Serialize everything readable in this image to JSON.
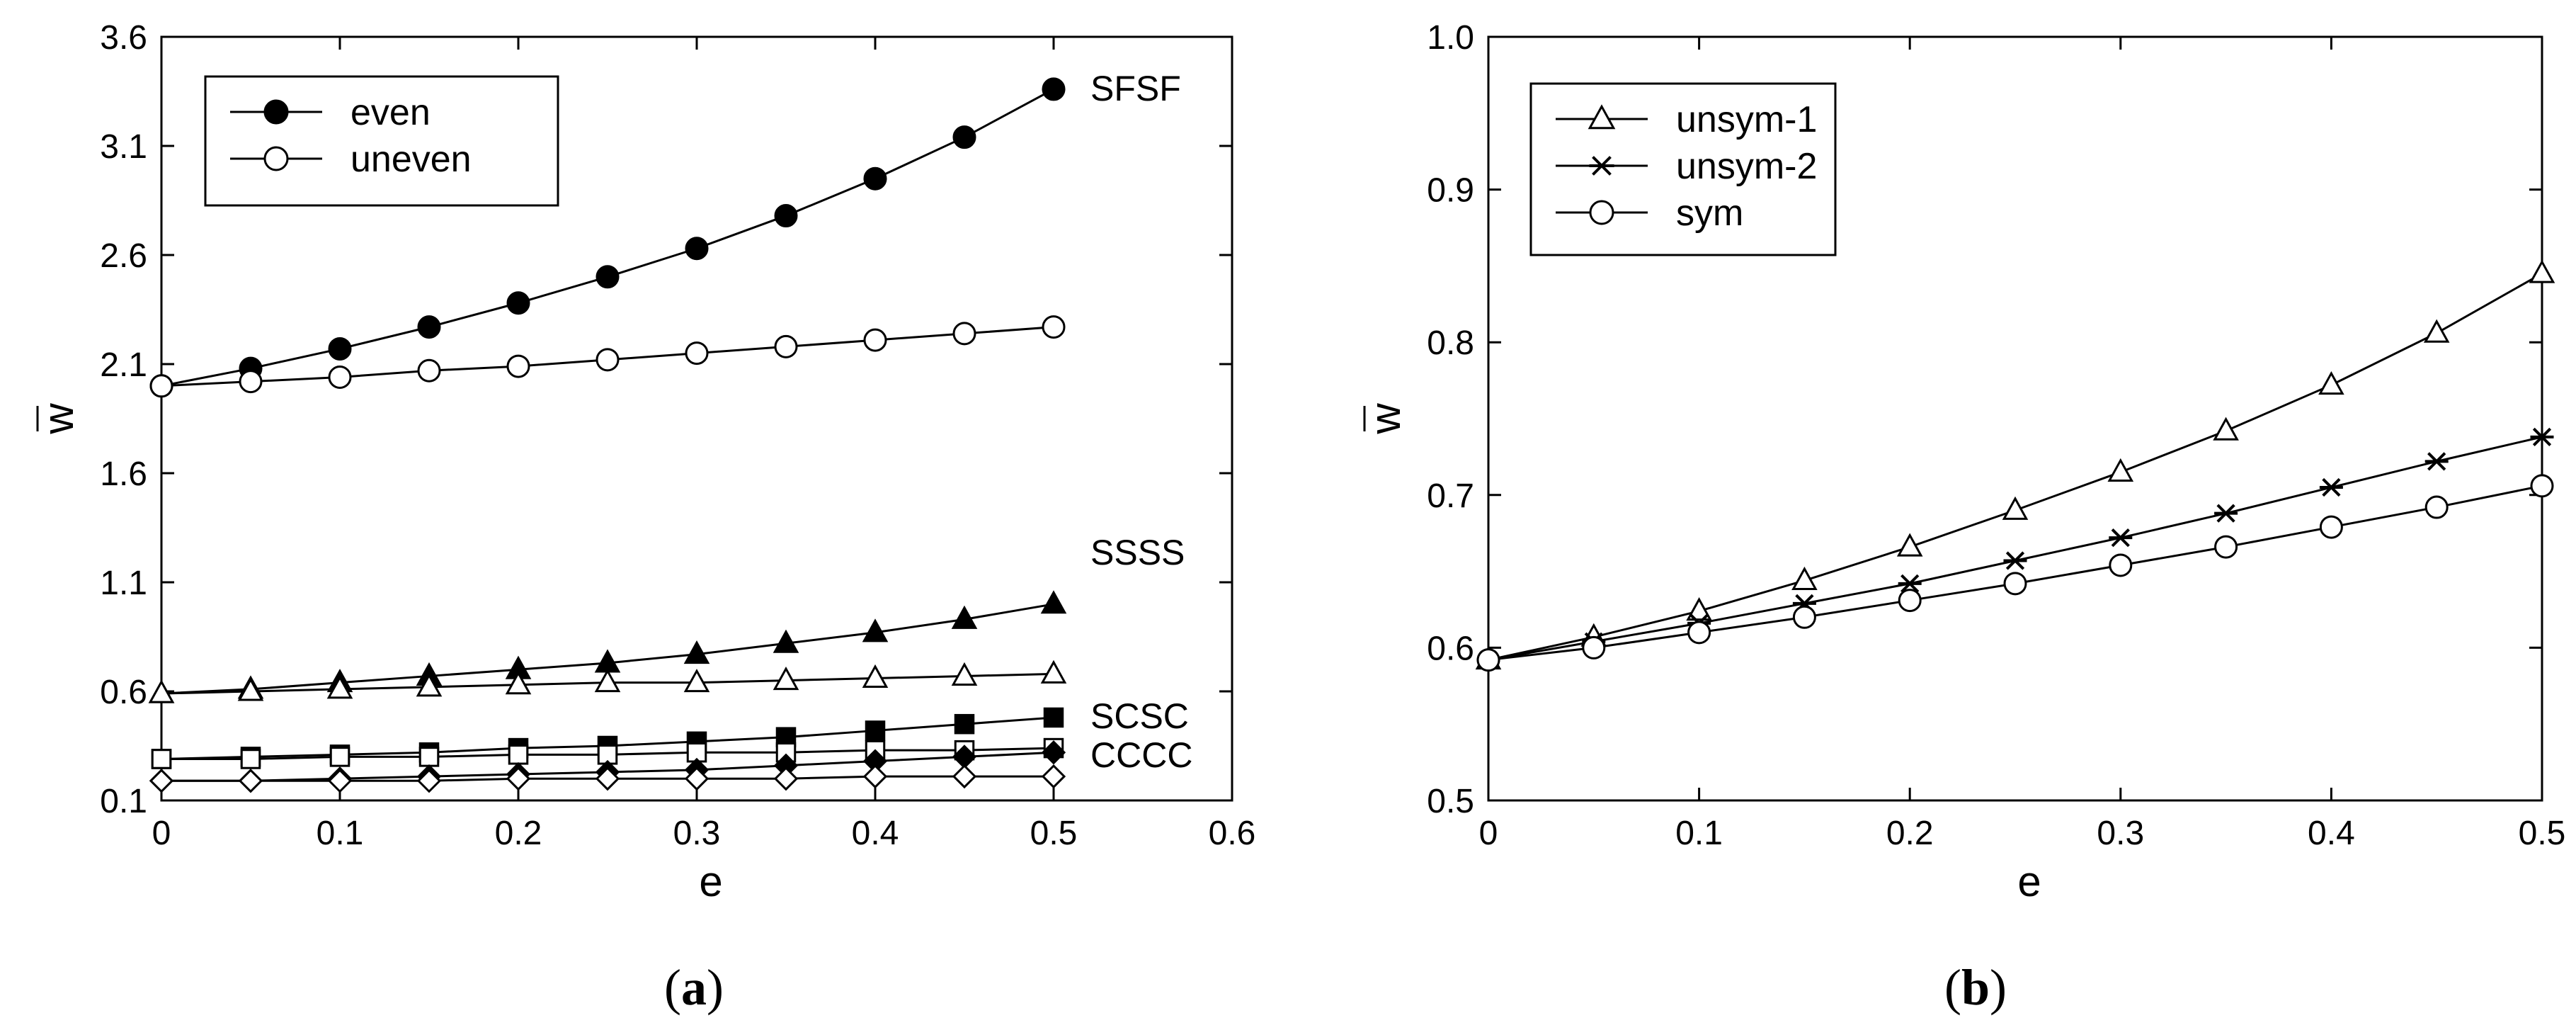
{
  "chart_data": [
    {
      "id": "a",
      "type": "line",
      "caption": "a",
      "xlabel": "e",
      "ylabel": "w",
      "xlim": [
        0,
        0.6
      ],
      "ylim": [
        0.1,
        3.6
      ],
      "xticks": [
        "0",
        "0.1",
        "0.2",
        "0.3",
        "0.4",
        "0.5",
        "0.6"
      ],
      "yticks": [
        "0.1",
        "0.6",
        "1.1",
        "1.6",
        "2.1",
        "2.6",
        "3.1",
        "3.6"
      ],
      "legend": {
        "position": "top-left",
        "entries": [
          {
            "label": "even",
            "marker": "filled-circle"
          },
          {
            "label": "uneven",
            "marker": "open-circle"
          }
        ]
      },
      "annotations": [
        "SFSF",
        "SSSS",
        "SCSC",
        "CCCC"
      ],
      "x": [
        0,
        0.05,
        0.1,
        0.15,
        0.2,
        0.25,
        0.3,
        0.35,
        0.4,
        0.45,
        0.5
      ],
      "series": [
        {
          "name": "SFSF even",
          "marker": "filled-circle",
          "values": [
            2.0,
            2.08,
            2.17,
            2.27,
            2.38,
            2.5,
            2.63,
            2.78,
            2.95,
            3.14,
            3.36
          ]
        },
        {
          "name": "SFSF uneven",
          "marker": "open-circle",
          "values": [
            2.0,
            2.02,
            2.04,
            2.07,
            2.09,
            2.12,
            2.15,
            2.18,
            2.21,
            2.24,
            2.27
          ]
        },
        {
          "name": "SSSS even",
          "marker": "filled-triangle",
          "values": [
            0.59,
            0.61,
            0.64,
            0.67,
            0.7,
            0.73,
            0.77,
            0.82,
            0.87,
            0.93,
            1.0
          ]
        },
        {
          "name": "SSSS uneven",
          "marker": "open-triangle",
          "values": [
            0.59,
            0.6,
            0.61,
            0.62,
            0.63,
            0.64,
            0.64,
            0.65,
            0.66,
            0.67,
            0.68
          ]
        },
        {
          "name": "SCSC even",
          "marker": "filled-square",
          "values": [
            0.29,
            0.3,
            0.31,
            0.32,
            0.34,
            0.35,
            0.37,
            0.39,
            0.42,
            0.45,
            0.48
          ]
        },
        {
          "name": "SCSC uneven",
          "marker": "open-square",
          "values": [
            0.29,
            0.29,
            0.3,
            0.3,
            0.31,
            0.31,
            0.32,
            0.32,
            0.33,
            0.33,
            0.34
          ]
        },
        {
          "name": "CCCC even",
          "marker": "filled-diamond",
          "values": [
            0.19,
            0.19,
            0.2,
            0.21,
            0.22,
            0.23,
            0.24,
            0.26,
            0.28,
            0.3,
            0.32
          ]
        },
        {
          "name": "CCCC uneven",
          "marker": "open-diamond",
          "values": [
            0.19,
            0.19,
            0.19,
            0.19,
            0.2,
            0.2,
            0.2,
            0.2,
            0.21,
            0.21,
            0.21
          ]
        }
      ]
    },
    {
      "id": "b",
      "type": "line",
      "caption": "b",
      "xlabel": "e",
      "ylabel": "w",
      "xlim": [
        0,
        0.5
      ],
      "ylim": [
        0.5,
        1.0
      ],
      "xticks": [
        "0",
        "0.1",
        "0.2",
        "0.3",
        "0.4",
        "0.5"
      ],
      "yticks": [
        "0.5",
        "0.6",
        "0.7",
        "0.8",
        "0.9",
        "1.0"
      ],
      "legend": {
        "position": "top-left",
        "entries": [
          {
            "label": "unsym-1",
            "marker": "open-triangle"
          },
          {
            "label": "unsym-2",
            "marker": "asterisk"
          },
          {
            "label": "sym",
            "marker": "open-circle"
          }
        ]
      },
      "annotations": [],
      "x": [
        0,
        0.05,
        0.1,
        0.15,
        0.2,
        0.25,
        0.3,
        0.35,
        0.4,
        0.45,
        0.5
      ],
      "series": [
        {
          "name": "unsym-1",
          "marker": "open-triangle",
          "values": [
            0.592,
            0.607,
            0.624,
            0.644,
            0.666,
            0.69,
            0.715,
            0.742,
            0.772,
            0.806,
            0.845
          ]
        },
        {
          "name": "unsym-2",
          "marker": "asterisk",
          "values": [
            0.592,
            0.604,
            0.616,
            0.629,
            0.642,
            0.657,
            0.672,
            0.688,
            0.705,
            0.722,
            0.738
          ]
        },
        {
          "name": "sym",
          "marker": "open-circle",
          "values": [
            0.592,
            0.6,
            0.61,
            0.62,
            0.631,
            0.642,
            0.654,
            0.666,
            0.679,
            0.692,
            0.706
          ]
        }
      ]
    }
  ]
}
